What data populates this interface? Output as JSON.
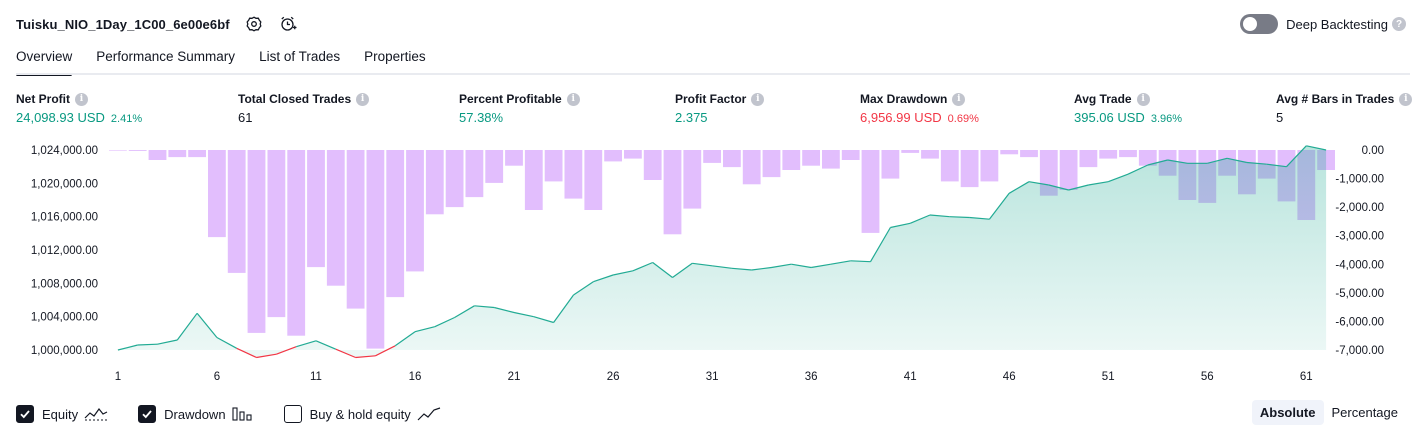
{
  "header": {
    "strategy_name": "Tuisku_NIO_1Day_1C00_6e00e6bf",
    "deep_backtesting_label": "Deep Backtesting",
    "deep_backtesting_enabled": false
  },
  "tabs": [
    {
      "label": "Overview",
      "active": true
    },
    {
      "label": "Performance Summary",
      "active": false
    },
    {
      "label": "List of Trades",
      "active": false
    },
    {
      "label": "Properties",
      "active": false
    }
  ],
  "metrics": {
    "net_profit": {
      "title": "Net Profit",
      "value": "24,098.93 USD",
      "pct": "2.41%"
    },
    "total_closed_trades": {
      "title": "Total Closed Trades",
      "value": "61"
    },
    "percent_profitable": {
      "title": "Percent Profitable",
      "value": "57.38%"
    },
    "profit_factor": {
      "title": "Profit Factor",
      "value": "2.375"
    },
    "max_drawdown": {
      "title": "Max Drawdown",
      "value": "6,956.99 USD",
      "pct": "0.69%"
    },
    "avg_trade": {
      "title": "Avg Trade",
      "value": "395.06 USD",
      "pct": "3.96%"
    },
    "avg_bars": {
      "title": "Avg # Bars in Trades",
      "value": "5"
    }
  },
  "colors": {
    "equity_line": "#22ab94",
    "equity_line_negative": "#f23645",
    "equity_fill": "#22ab94",
    "drawdown_bar": "#ce93fb",
    "positive": "#089981",
    "negative": "#f23645"
  },
  "legend": {
    "equity_label": "Equity",
    "equity_checked": true,
    "drawdown_label": "Drawdown",
    "drawdown_checked": true,
    "buyhold_label": "Buy & hold equity",
    "buyhold_checked": false
  },
  "mode": {
    "absolute_label": "Absolute",
    "percentage_label": "Percentage",
    "active": "Absolute"
  },
  "chart_data": {
    "type": "line",
    "x_ticks": [
      "1",
      "6",
      "11",
      "16",
      "21",
      "26",
      "31",
      "36",
      "41",
      "46",
      "51",
      "56",
      "61"
    ],
    "y_left_ticks": [
      "1,024,000.00",
      "1,020,000.00",
      "1,016,000.00",
      "1,012,000.00",
      "1,008,000.00",
      "1,004,000.00",
      "1,000,000.00"
    ],
    "y_right_ticks": [
      "0.00",
      "-1,000.00",
      "-2,000.00",
      "-3,000.00",
      "-4,000.00",
      "-5,000.00",
      "-6,000.00",
      "-7,000.00"
    ],
    "y_left_range": [
      1000000,
      1024000
    ],
    "y_right_range": [
      -7000,
      0
    ],
    "x_range": [
      1,
      62
    ],
    "series": [
      {
        "name": "Equity",
        "axis": "left",
        "x": [
          1,
          2,
          3,
          4,
          5,
          6,
          7,
          8,
          9,
          10,
          11,
          12,
          13,
          14,
          15,
          16,
          17,
          18,
          19,
          20,
          21,
          22,
          23,
          24,
          25,
          26,
          27,
          28,
          29,
          30,
          31,
          32,
          33,
          34,
          35,
          36,
          37,
          38,
          39,
          40,
          41,
          42,
          43,
          44,
          45,
          46,
          47,
          48,
          49,
          50,
          51,
          52,
          53,
          54,
          55,
          56,
          57,
          58,
          59,
          60,
          61,
          62
        ],
        "values": [
          1000000,
          1000600,
          1000700,
          1001200,
          1004400,
          1001500,
          1000200,
          999100,
          999500,
          1000400,
          1001100,
          1000100,
          999100,
          999300,
          1000500,
          1002200,
          1002800,
          1003900,
          1005300,
          1005100,
          1004500,
          1004000,
          1003300,
          1006600,
          1008200,
          1009000,
          1009500,
          1010500,
          1008700,
          1010400,
          1010100,
          1009800,
          1009600,
          1009900,
          1010300,
          1009900,
          1010300,
          1010700,
          1010600,
          1014700,
          1015200,
          1016200,
          1016000,
          1015900,
          1015700,
          1018800,
          1020200,
          1019800,
          1019200,
          1019800,
          1020200,
          1021100,
          1022200,
          1022800,
          1022400,
          1022400,
          1023000,
          1022500,
          1022300,
          1022000,
          1024500,
          1024000
        ]
      },
      {
        "name": "Drawdown",
        "axis": "right",
        "x": [
          1,
          2,
          3,
          4,
          5,
          6,
          7,
          8,
          9,
          10,
          11,
          12,
          13,
          14,
          15,
          16,
          17,
          18,
          19,
          20,
          21,
          22,
          23,
          24,
          25,
          26,
          27,
          28,
          29,
          30,
          31,
          32,
          33,
          34,
          35,
          36,
          37,
          38,
          39,
          40,
          41,
          42,
          43,
          44,
          45,
          46,
          47,
          48,
          49,
          50,
          51,
          52,
          53,
          54,
          55,
          56,
          57,
          58,
          59,
          60,
          61,
          62
        ],
        "values": [
          -20,
          -30,
          -350,
          -250,
          -250,
          -3050,
          -4300,
          -6400,
          -5850,
          -6500,
          -4100,
          -4750,
          -5550,
          -6950,
          -5150,
          -4250,
          -2250,
          -2000,
          -1650,
          -1150,
          -550,
          -2100,
          -1100,
          -1700,
          -2100,
          -400,
          -300,
          -1050,
          -2950,
          -2050,
          -450,
          -600,
          -1200,
          -950,
          -700,
          -550,
          -650,
          -350,
          -2900,
          -1000,
          -100,
          -300,
          -1100,
          -1300,
          -1100,
          -150,
          -250,
          -1600,
          -1400,
          -600,
          -300,
          -250,
          -550,
          -900,
          -1750,
          -1850,
          -900,
          -1550,
          -1000,
          -1800,
          -2450,
          -700
        ]
      }
    ],
    "title": "",
    "xlabel": "",
    "ylabel": "",
    "grid": false
  }
}
